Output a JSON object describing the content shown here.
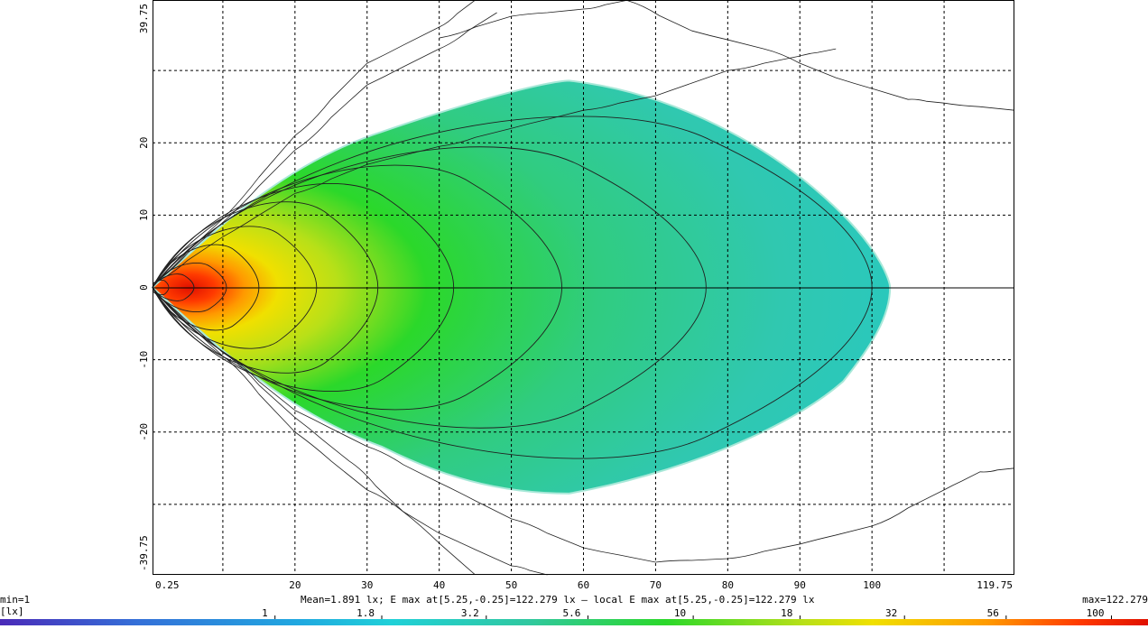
{
  "chart_data": {
    "type": "heatmap",
    "title": "",
    "xlabel": "",
    "ylabel": "",
    "xlim": [
      0.25,
      119.75
    ],
    "ylim": [
      -39.75,
      39.75
    ],
    "x_ticks": [
      "0.25",
      "20",
      "30",
      "40",
      "50",
      "60",
      "70",
      "80",
      "90",
      "100",
      "119.75"
    ],
    "x_tick_values": [
      0.25,
      20,
      30,
      40,
      50,
      60,
      70,
      80,
      90,
      100,
      119.75
    ],
    "y_ticks": [
      "39.75",
      "20",
      "10",
      "0",
      "-10",
      "-20",
      "-39.75"
    ],
    "y_tick_values": [
      39.75,
      20,
      10,
      0,
      -10,
      -20,
      -39.75
    ],
    "x_grid": [
      10,
      20,
      30,
      40,
      50,
      60,
      70,
      80,
      90,
      100,
      110
    ],
    "y_grid": [
      30,
      20,
      10,
      0,
      -10,
      -20,
      -30
    ],
    "grid": true,
    "colors": {
      "deep_red": "#e01000",
      "red": "#ff2a00",
      "orange": "#ff8a00",
      "yellow": "#f0e000",
      "yellow_green": "#b8e018",
      "green": "#2bd82a",
      "teal": "#30c8a8",
      "cyan": "#20d0d8",
      "blue": "#3470d8"
    },
    "source_point": [
      0.25,
      0
    ],
    "peak_point": [
      5.25,
      -0.25
    ],
    "contour_extents_x": [
      2.5,
      6,
      10.5,
      15,
      23,
      31.5,
      42,
      57,
      77,
      100
    ],
    "contour_extents_y": [
      1.2,
      2.2,
      4,
      7,
      10,
      14,
      17,
      20,
      23,
      28
    ],
    "outer_light_boundaries": [
      {
        "side": "upper",
        "points": [
          [
            0.25,
            0.5
          ],
          [
            10,
            7
          ],
          [
            20,
            13
          ],
          [
            30,
            17
          ],
          [
            40,
            19.5
          ],
          [
            50,
            22
          ],
          [
            60,
            24.5
          ],
          [
            70,
            26.5
          ],
          [
            80,
            30
          ],
          [
            90,
            32
          ],
          [
            95,
            33
          ]
        ]
      },
      {
        "side": "upper",
        "points": [
          [
            0.25,
            0.5
          ],
          [
            10,
            9
          ],
          [
            20,
            19
          ],
          [
            30,
            28
          ],
          [
            40,
            33
          ],
          [
            48,
            38
          ]
        ]
      },
      {
        "side": "upper",
        "points": [
          [
            0.25,
            0.5
          ],
          [
            10,
            9.5
          ],
          [
            20,
            21
          ],
          [
            30,
            31
          ],
          [
            40,
            36
          ],
          [
            45,
            39.75
          ]
        ]
      },
      {
        "side": "upper",
        "points": [
          [
            40,
            34.5
          ],
          [
            50,
            37.5
          ],
          [
            60,
            38.5
          ],
          [
            66,
            39.7
          ],
          [
            75,
            35.5
          ],
          [
            85,
            33
          ],
          [
            95,
            29
          ],
          [
            105,
            26
          ],
          [
            110,
            25.5
          ],
          [
            119.75,
            24.5
          ]
        ]
      },
      {
        "side": "lower",
        "points": [
          [
            0.25,
            -0.5
          ],
          [
            10,
            -9
          ],
          [
            20,
            -18
          ],
          [
            27.5,
            -24
          ],
          [
            35,
            -31
          ],
          [
            45,
            -39.75
          ]
        ]
      },
      {
        "side": "lower",
        "points": [
          [
            0.25,
            -0.5
          ],
          [
            10,
            -9.5
          ],
          [
            20,
            -20
          ],
          [
            30,
            -28
          ],
          [
            40,
            -34
          ],
          [
            50,
            -38.5
          ],
          [
            55,
            -39.75
          ]
        ]
      },
      {
        "side": "lower",
        "points": [
          [
            0.25,
            -0.5
          ],
          [
            10,
            -9
          ],
          [
            20,
            -17
          ],
          [
            30,
            -22
          ],
          [
            40,
            -27
          ],
          [
            50,
            -32
          ],
          [
            60,
            -36
          ],
          [
            70,
            -38
          ],
          [
            80,
            -37.5
          ],
          [
            90,
            -35.5
          ],
          [
            100,
            -33
          ],
          [
            110,
            -28
          ],
          [
            115,
            -25.5
          ],
          [
            119.75,
            -25
          ]
        ]
      }
    ],
    "legend": {
      "min_label": "min=1",
      "unit": "[lx]",
      "max_label": "max=122.279",
      "stats": "Mean=1.891 lx; E max at[5.25,-0.25]=122.279 lx — local E max at[5.25,-0.25]=122.279 lx",
      "ticks": [
        "1",
        "1.8",
        "3.2",
        "5.6",
        "10",
        "18",
        "32",
        "56",
        "100"
      ],
      "tick_values": [
        1,
        1.8,
        3.2,
        5.6,
        10,
        18,
        32,
        56,
        100
      ],
      "scale": "log"
    }
  }
}
